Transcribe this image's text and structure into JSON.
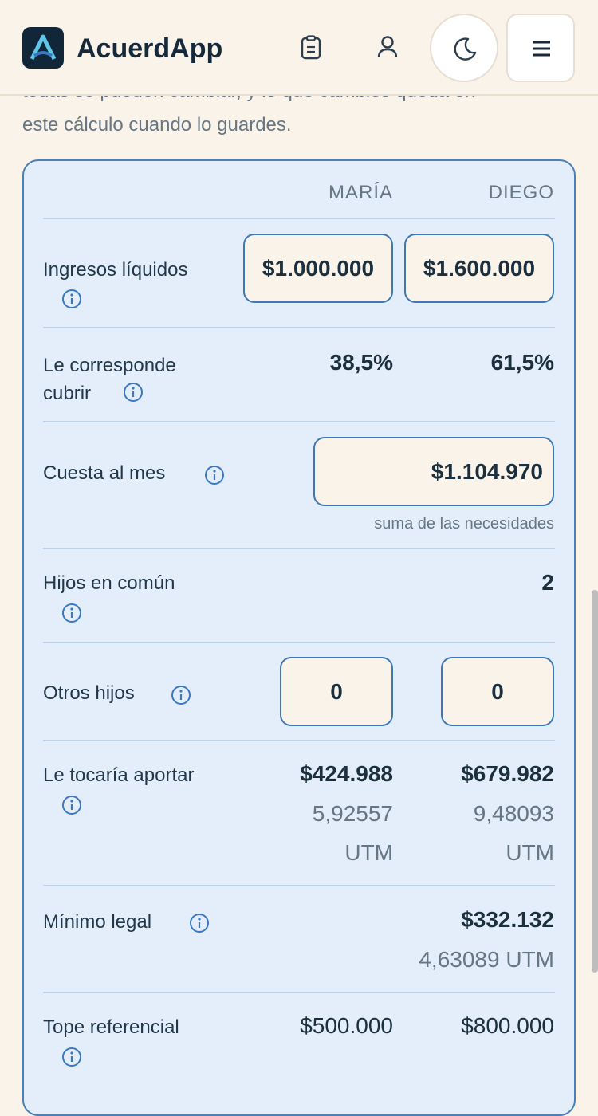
{
  "header": {
    "brand": "AcuerdApp"
  },
  "intro": {
    "lines": [
      "todas se pueden cambiar, y lo que cambies queda en",
      "este cálculo cuando lo guardes."
    ]
  },
  "table": {
    "columns": [
      "MARÍA",
      "DIEGO"
    ],
    "rows": [
      {
        "label": "Ingresos líquidos",
        "values": [
          "$1.000.000",
          "$1.600.000"
        ]
      },
      {
        "label": "Le corresponde cubrir",
        "values": [
          "38,5%",
          "61,5%"
        ]
      },
      {
        "label": "Cuesta al mes",
        "value": "$1.104.970",
        "note": "suma de las necesidades"
      },
      {
        "label": "Hijos en común",
        "value": "2"
      },
      {
        "label": "Otros hijos",
        "values": [
          "0",
          "0"
        ]
      },
      {
        "label": "Le tocaría aportar",
        "values": [
          {
            "amount": "$424.988",
            "utm": "5,92557",
            "unit": "UTM"
          },
          {
            "amount": "$679.982",
            "utm": "9,48093",
            "unit": "UTM"
          }
        ]
      },
      {
        "label": "Mínimo legal",
        "value": "$332.132",
        "note": "4,63089 UTM"
      },
      {
        "label": "Tope referencial",
        "values": [
          "$500.000",
          "$800.000"
        ]
      }
    ]
  }
}
